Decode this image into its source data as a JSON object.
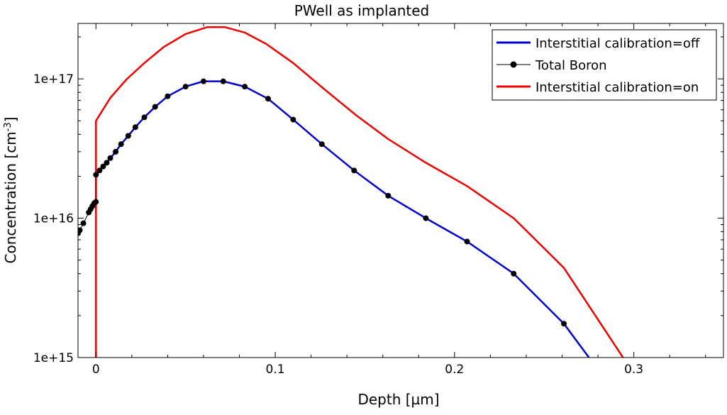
{
  "chart_data": {
    "type": "line",
    "title": "PWell as implanted",
    "xlabel": "Depth [µm]",
    "ylabel_main": "Concentration [cm",
    "ylabel_sup": "-3",
    "ylabel_end": "]",
    "xlim": [
      -0.01,
      0.35
    ],
    "ylim": [
      1000000000000000.0,
      2.5e+17
    ],
    "y_scale": "log",
    "x_ticks": [
      0,
      0.1,
      0.2,
      0.3
    ],
    "x_tick_labels": [
      "0",
      "0.1",
      "0.2",
      "0.3"
    ],
    "y_ticks": [
      1000000000000000.0,
      1e+16,
      1e+17
    ],
    "y_tick_labels": [
      "1e+15",
      "1e+16",
      "1e+17"
    ],
    "grid": false,
    "legend_position": "top-right",
    "series": [
      {
        "name": "Interstitial calibration=off",
        "color": "#0000cc",
        "marker": "none",
        "x": [
          0,
          0.002,
          0.004,
          0.006,
          0.008,
          0.011,
          0.014,
          0.018,
          0.022,
          0.027,
          0.033,
          0.04,
          0.05,
          0.06,
          0.071,
          0.083,
          0.096,
          0.11,
          0.126,
          0.144,
          0.163,
          0.184,
          0.207,
          0.233,
          0.261,
          0.275
        ],
        "y": [
          2.05e+16,
          2.2e+16,
          2.35e+16,
          2.5e+16,
          2.7e+16,
          3e+16,
          3.4e+16,
          3.9e+16,
          4.5e+16,
          5.3e+16,
          6.3e+16,
          7.5e+16,
          8.8e+16,
          9.6e+16,
          9.6e+16,
          8.8e+16,
          7.2e+16,
          5.1e+16,
          3.4e+16,
          2.2e+16,
          1.45e+16,
          1e+16,
          6800000000000000.0,
          4000000000000000.0,
          1750000000000000.0,
          1000000000000000.0
        ]
      },
      {
        "name": "Total Boron",
        "color": "#000000",
        "marker": "circle",
        "x": [
          -0.01,
          -0.009,
          -0.007,
          -0.004,
          -0.003,
          -0.002,
          -0.001,
          0,
          0,
          0.002,
          0.004,
          0.006,
          0.008,
          0.011,
          0.014,
          0.018,
          0.022,
          0.027,
          0.033,
          0.04,
          0.05,
          0.06,
          0.071,
          0.083,
          0.096,
          0.11,
          0.126,
          0.144,
          0.163,
          0.184,
          0.207,
          0.233,
          0.261
        ],
        "y": [
          7800000000000000.0,
          8200000000000000.0,
          9200000000000000.0,
          1.1e+16,
          1.16e+16,
          1.22e+16,
          1.28e+16,
          1.31e+16,
          2.05e+16,
          2.2e+16,
          2.35e+16,
          2.5e+16,
          2.7e+16,
          3e+16,
          3.4e+16,
          3.9e+16,
          4.5e+16,
          5.3e+16,
          6.3e+16,
          7.5e+16,
          8.8e+16,
          9.6e+16,
          9.6e+16,
          8.8e+16,
          7.2e+16,
          5.1e+16,
          3.4e+16,
          2.2e+16,
          1.45e+16,
          1e+16,
          6800000000000000.0,
          4000000000000000.0,
          1750000000000000.0
        ]
      },
      {
        "name": "Interstitial calibration=on",
        "color": "#ee0000",
        "marker": "none",
        "x": [
          0,
          0,
          0.008,
          0.017,
          0.027,
          0.038,
          0.05,
          0.062,
          0.072,
          0.083,
          0.095,
          0.11,
          0.127,
          0.145,
          0.163,
          0.184,
          0.207,
          0.233,
          0.261,
          0.294
        ],
        "y": [
          1000000000000000.0,
          5e+16,
          7.3e+16,
          9.9e+16,
          1.3e+17,
          1.7e+17,
          2.1e+17,
          2.35e+17,
          2.35e+17,
          2.15e+17,
          1.78e+17,
          1.3e+17,
          8.5e+16,
          5.5e+16,
          3.7e+16,
          2.5e+16,
          1.7e+16,
          1e+16,
          4400000000000000.0,
          1000000000000000.0
        ]
      }
    ]
  }
}
